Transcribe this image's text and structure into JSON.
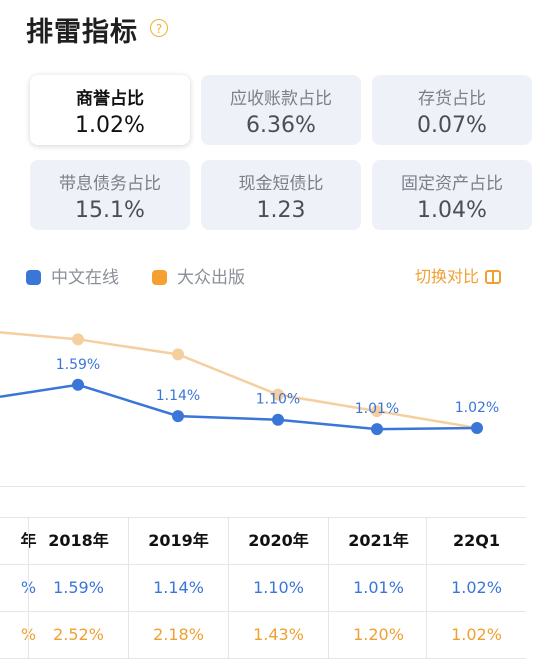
{
  "header": {
    "title": "排雷指标",
    "help_icon": "?"
  },
  "metrics": [
    {
      "label": "商誉占比",
      "value": "1.02%",
      "selected": true
    },
    {
      "label": "应收账款占比",
      "value": "6.36%"
    },
    {
      "label": "存货占比",
      "value": "0.07%"
    },
    {
      "label": "带息债务占比",
      "value": "15.1%"
    },
    {
      "label": "现金短债比",
      "value": "1.23"
    },
    {
      "label": "固定资产占比",
      "value": "1.04%"
    }
  ],
  "legend": [
    {
      "name": "中文在线",
      "color": "#3a76d8"
    },
    {
      "name": "大众出版",
      "color": "#f5a030"
    }
  ],
  "switch": {
    "label": "切换对比"
  },
  "chart_data": {
    "type": "line",
    "x": [
      "2018年",
      "2019年",
      "2020年",
      "2021年",
      "22Q1"
    ],
    "series": [
      {
        "name": "中文在线",
        "color": "#3a76d8",
        "values": [
          1.59,
          1.14,
          1.1,
          1.01,
          1.02
        ],
        "labels": [
          "1.59%",
          "1.14%",
          "1.10%",
          "1.01%",
          "1.02%"
        ]
      },
      {
        "name": "大众出版",
        "color": "#f5cfa0",
        "values": [
          2.52,
          2.18,
          1.43,
          1.2,
          1.02
        ]
      }
    ],
    "ylim": [
      0.9,
      3.0
    ]
  },
  "table": {
    "header_partial": "年",
    "headers": [
      "2018年",
      "2019年",
      "2020年",
      "2021年",
      "22Q1"
    ],
    "rows": [
      {
        "partial": "%",
        "values": [
          "1.59%",
          "1.14%",
          "1.10%",
          "1.01%",
          "1.02%"
        ]
      },
      {
        "partial": "%",
        "values": [
          "2.52%",
          "2.18%",
          "1.43%",
          "1.20%",
          "1.02%"
        ]
      }
    ]
  }
}
